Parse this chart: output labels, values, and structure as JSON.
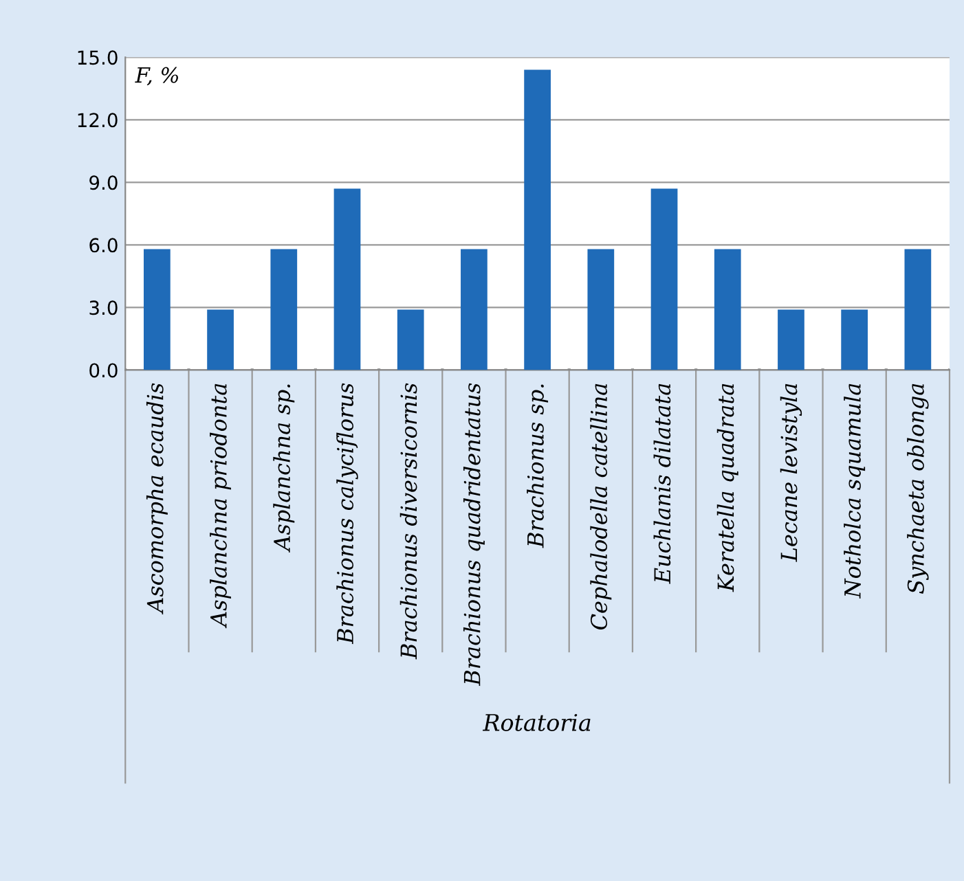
{
  "chart_data": {
    "type": "bar",
    "ylabel": "F, %",
    "xlabel": "Rotatoria",
    "categories": [
      "Ascomorpha ecaudis",
      "Asplanchna priodonta",
      "Asplanchna sp.",
      "Brachionus calyciflorus",
      "Brachionus diversicornis",
      "Brachionus quadridentatus",
      "Brachionus sp.",
      "Cephalodella catellina",
      "Euchlanis dilatata",
      "Keratella quadrata",
      "Lecane levistyla",
      "Notholca squamula",
      "Synchaeta oblonga"
    ],
    "values": [
      5.8,
      2.9,
      5.8,
      8.7,
      2.9,
      5.8,
      14.4,
      5.8,
      8.7,
      5.8,
      2.9,
      2.9,
      5.8
    ],
    "color": "#1f6bb8",
    "ylim": [
      0,
      15
    ],
    "yticks": [
      {
        "value": 0,
        "label": "0.0"
      },
      {
        "value": 3,
        "label": "3.0"
      },
      {
        "value": 6,
        "label": "6.0"
      },
      {
        "value": 9,
        "label": "9.0"
      },
      {
        "value": 12,
        "label": "12.0"
      },
      {
        "value": 15,
        "label": "15.0"
      }
    ],
    "grid": "y"
  }
}
